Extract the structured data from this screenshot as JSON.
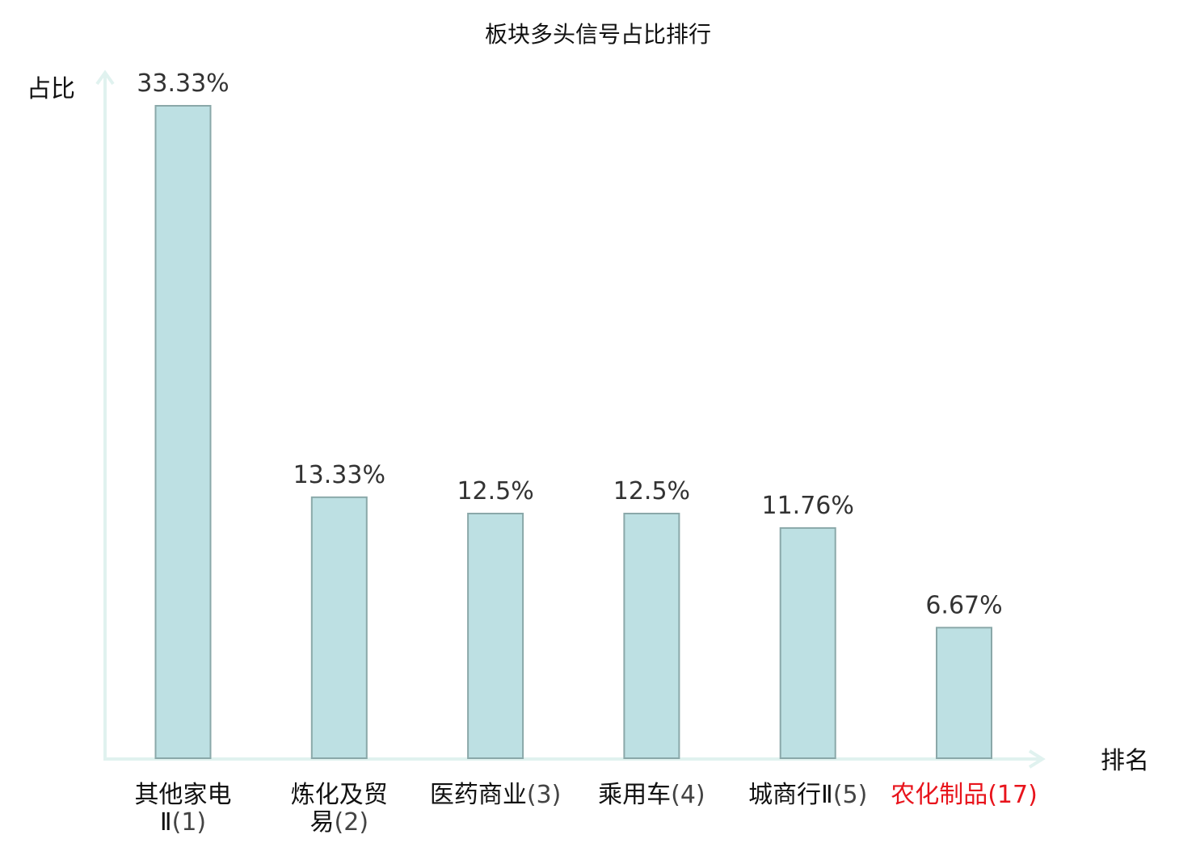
{
  "chart_data": {
    "type": "bar",
    "title": "板块多头信号占比排行",
    "ylabel": "占比",
    "xlabel": "排名",
    "categories": [
      {
        "name_lines": [
          "其他家电",
          "Ⅱ"
        ],
        "rank": "(1)"
      },
      {
        "name_lines": [
          "炼化及贸",
          "易"
        ],
        "rank": "(2)"
      },
      {
        "name_lines": [
          "医药商业"
        ],
        "rank": "(3)"
      },
      {
        "name_lines": [
          "乘用车"
        ],
        "rank": "(4)"
      },
      {
        "name_lines": [
          "城商行Ⅱ"
        ],
        "rank": "(5)"
      },
      {
        "name_lines": [
          "农化制品"
        ],
        "rank": "(17)",
        "highlight": true
      }
    ],
    "series": [
      {
        "values": [
          33.33,
          13.33,
          12.5,
          12.5,
          11.76,
          6.67
        ],
        "labels": [
          "33.33%",
          "13.33%",
          "12.5%",
          "12.5%",
          "11.76%",
          "6.67%"
        ]
      }
    ],
    "ylim": [
      0,
      33.33
    ],
    "grid": false,
    "legend": "none"
  },
  "colors": {
    "bar_fill": "#bde0e3",
    "bar_stroke": "#8aa8a9",
    "axis": "#e0f2ef",
    "text": "#111111",
    "value_text": "#333333",
    "rank_text": "#444444",
    "highlight": "#e8141c"
  }
}
